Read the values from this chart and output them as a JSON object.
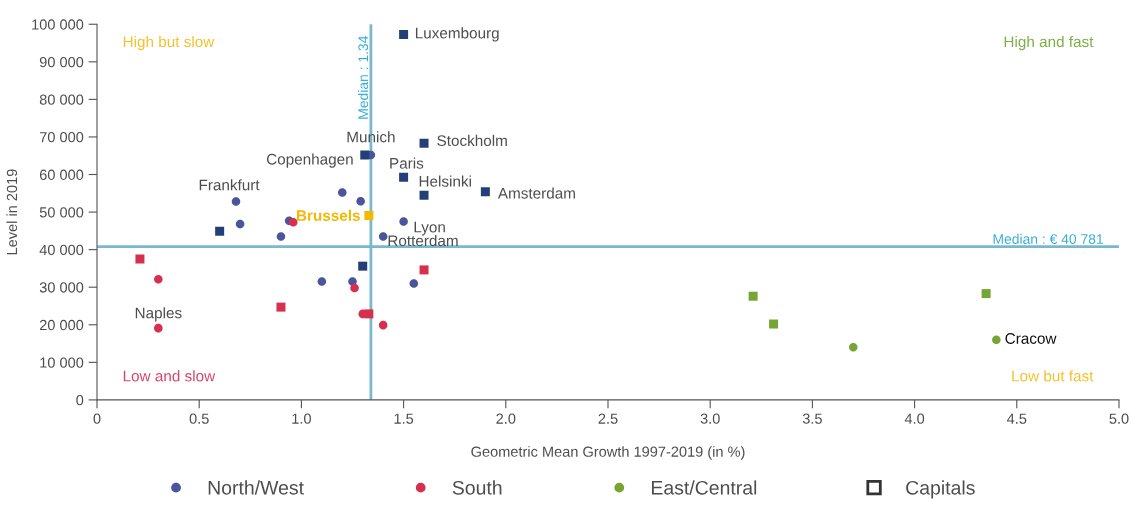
{
  "chart_data": {
    "type": "scatter",
    "xlabel": "Geometric Mean Growth 1997-2019 (in %)",
    "ylabel": "Level in 2019",
    "xlim": [
      0,
      5
    ],
    "ylim": [
      0,
      100000
    ],
    "xticks": [
      0,
      0.5,
      {
        "value": 1,
        "label": "1.0"
      },
      1.5,
      {
        "value": 2,
        "label": "2.0"
      },
      2.5,
      {
        "value": 3,
        "label": "3.0"
      },
      3.5,
      {
        "value": 4,
        "label": "4.0"
      },
      4.5,
      {
        "value": 5,
        "label": "5.0"
      }
    ],
    "yticks": [
      0,
      {
        "value": 10000,
        "label": "10 000"
      },
      {
        "value": 20000,
        "label": "20 000"
      },
      {
        "value": 30000,
        "label": "30 000"
      },
      {
        "value": 40000,
        "label": "40 000"
      },
      {
        "value": 50000,
        "label": "50 000"
      },
      {
        "value": 60000,
        "label": "60 000"
      },
      {
        "value": 70000,
        "label": "70 000"
      },
      {
        "value": 80000,
        "label": "80 000"
      },
      {
        "value": 90000,
        "label": "90 000"
      },
      {
        "value": 100000,
        "label": "100 000"
      }
    ],
    "grid": false,
    "legend": "bottom",
    "series": [
      {
        "name": "North/West",
        "color": "#4a559c",
        "marker": "circle",
        "x": [
          0.68,
          0.7,
          0.9,
          0.94,
          1.2,
          1.29,
          1.34,
          1.5,
          1.4,
          1.1,
          1.25,
          1.55
        ],
        "values": [
          52800,
          46800,
          43500,
          47700,
          55200,
          52900,
          65200,
          47500,
          43500,
          31500,
          31500,
          31000
        ]
      },
      {
        "name": "South",
        "color": "#d6304f",
        "marker": "circle",
        "x": [
          0.96,
          0.3,
          0.3,
          1.26,
          1.3,
          1.4
        ],
        "values": [
          47300,
          32100,
          19100,
          29800,
          22900,
          19900
        ]
      },
      {
        "name": "East/Central",
        "color": "#77a535",
        "marker": "circle",
        "x": [
          3.7,
          4.4
        ],
        "values": [
          14000,
          16000
        ]
      },
      {
        "name": "Capitals",
        "color": "#333333",
        "marker": "square"
      },
      {
        "color": "#243f77",
        "marker": "square",
        "x": [
          1.5,
          1.31,
          1.6,
          1.5,
          1.6,
          1.9,
          0.6,
          1.3
        ],
        "values": [
          97300,
          65200,
          68300,
          59300,
          54500,
          55400,
          44900,
          35600
        ]
      },
      {
        "color": "#d6304f",
        "marker": "square",
        "x": [
          0.21,
          0.9,
          1.33,
          1.6
        ],
        "values": [
          37500,
          24700,
          22900,
          34600
        ]
      },
      {
        "color": "#f5b800",
        "marker": "square",
        "x": [
          1.33
        ],
        "values": [
          49100
        ]
      },
      {
        "color": "#77a535",
        "marker": "square",
        "x": [
          3.21,
          3.31,
          4.35
        ],
        "values": [
          27600,
          20200,
          28300
        ]
      }
    ],
    "ref_lines": [
      {
        "axis": "y",
        "value": 40781,
        "label": "Median : € 40 781",
        "color": "#7ab8cc"
      },
      {
        "axis": "x",
        "value": 1.34,
        "label": "Median : 1.34",
        "color": "#7ab8cc"
      }
    ],
    "annotations": [
      "High but slow",
      "High and fast",
      "Low and slow",
      "Low but fast",
      {
        "text": "Luxembourg",
        "x": 1.5,
        "y": 97300
      },
      {
        "text": "Munich",
        "x": 1.34,
        "y": 65200
      },
      {
        "text": "Copenhagen",
        "x": 1.31,
        "y": 65200
      },
      {
        "text": "Stockholm",
        "x": 1.6,
        "y": 68300
      },
      {
        "text": "Paris",
        "x": 1.5,
        "y": 59300
      },
      {
        "text": "Helsinki",
        "x": 1.6,
        "y": 54500
      },
      {
        "text": "Amsterdam",
        "x": 1.9,
        "y": 55400
      },
      {
        "text": "Frankfurt",
        "x": 0.68,
        "y": 52800
      },
      {
        "text": "Brussels",
        "x": 1.33,
        "y": 49100
      },
      {
        "text": "Lyon",
        "x": 1.5,
        "y": 47500
      },
      {
        "text": "Rotterdam",
        "x": 1.4,
        "y": 43500
      },
      {
        "text": "Naples",
        "x": 0.3,
        "y": 19100
      },
      {
        "text": "Cracow",
        "x": 4.4,
        "y": 16000
      }
    ]
  }
}
